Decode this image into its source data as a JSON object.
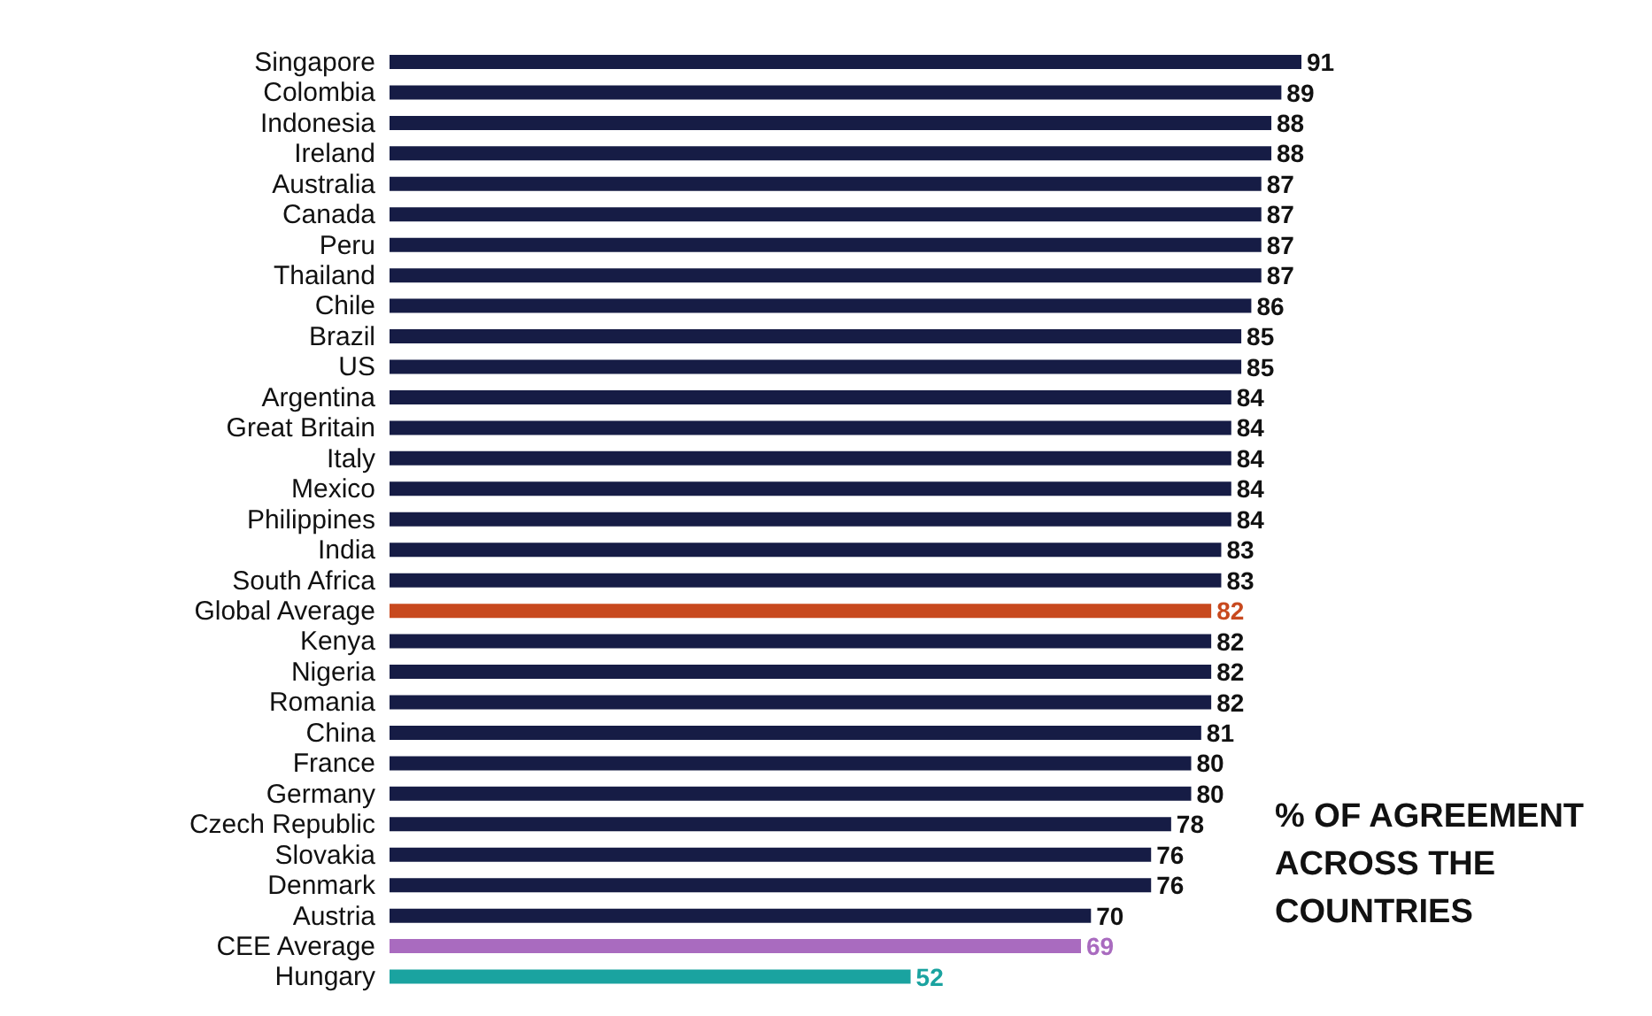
{
  "chart_data": {
    "type": "bar",
    "orientation": "horizontal",
    "data_labels": true,
    "legend": false,
    "grid": false,
    "tick_labels": "y",
    "categories": [
      "Singapore",
      "Colombia",
      "Indonesia",
      "Ireland",
      "Australia",
      "Canada",
      "Peru",
      "Thailand",
      "Chile",
      "Brazil",
      "US",
      "Argentina",
      "Great Britain",
      "Italy",
      "Mexico",
      "Philippines",
      "India",
      "South Africa",
      "Global Average",
      "Kenya",
      "Nigeria",
      "Romania",
      "China",
      "France",
      "Germany",
      "Czech Republic",
      "Slovakia",
      "Denmark",
      "Austria",
      "CEE Average",
      "Hungary"
    ],
    "values": [
      91,
      89,
      88,
      88,
      87,
      87,
      87,
      87,
      86,
      85,
      85,
      84,
      84,
      84,
      84,
      84,
      83,
      83,
      82,
      82,
      82,
      82,
      81,
      80,
      80,
      78,
      76,
      76,
      70,
      69,
      52
    ],
    "colors": [
      "#161c45",
      "#161c45",
      "#161c45",
      "#161c45",
      "#161c45",
      "#161c45",
      "#161c45",
      "#161c45",
      "#161c45",
      "#161c45",
      "#161c45",
      "#161c45",
      "#161c45",
      "#161c45",
      "#161c45",
      "#161c45",
      "#161c45",
      "#161c45",
      "#c8491e",
      "#161c45",
      "#161c45",
      "#161c45",
      "#161c45",
      "#161c45",
      "#161c45",
      "#161c45",
      "#161c45",
      "#161c45",
      "#161c45",
      "#a96bbf",
      "#1aa3a0"
    ],
    "annotations": [
      "% OF AGREEMENT ACROSS THE COUNTRIES"
    ]
  }
}
